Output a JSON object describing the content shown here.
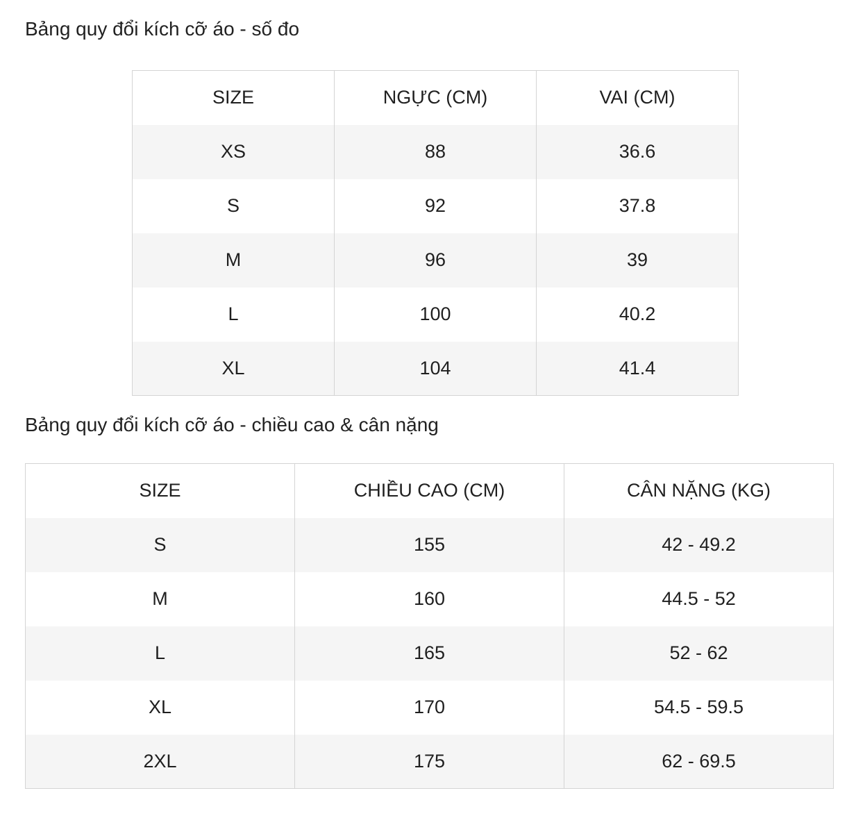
{
  "table1": {
    "title": "Bảng quy đổi kích cỡ áo - số đo",
    "headers": [
      "SIZE",
      "NGỰC (CM)",
      "VAI (CM)"
    ],
    "rows": [
      [
        "XS",
        "88",
        "36.6"
      ],
      [
        "S",
        "92",
        "37.8"
      ],
      [
        "M",
        "96",
        "39"
      ],
      [
        "L",
        "100",
        "40.2"
      ],
      [
        "XL",
        "104",
        "41.4"
      ]
    ]
  },
  "table2": {
    "title": "Bảng quy đổi kích cỡ áo - chiều cao & cân nặng",
    "headers": [
      "SIZE",
      "CHIỀU CAO (CM)",
      "CÂN NẶNG (KG)"
    ],
    "rows": [
      [
        "S",
        "155",
        "42 - 49.2"
      ],
      [
        "M",
        "160",
        "44.5 - 52"
      ],
      [
        "L",
        "165",
        "52 - 62"
      ],
      [
        "XL",
        "170",
        "54.5 - 59.5"
      ],
      [
        "2XL",
        "175",
        "62 - 69.5"
      ]
    ]
  }
}
